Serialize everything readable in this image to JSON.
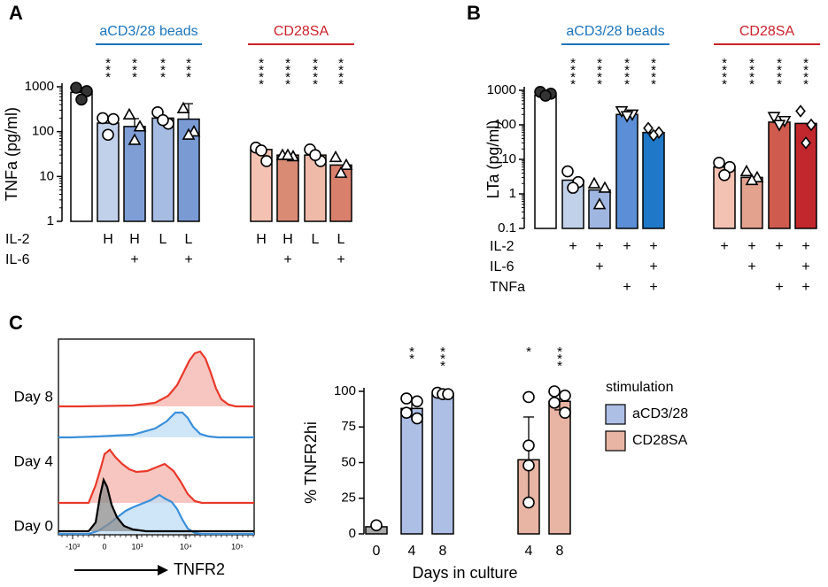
{
  "chart_data": [
    {
      "panel": "A",
      "type": "bar",
      "ylabel": "TNFa (pg/ml)",
      "yscale": "log",
      "ylim": [
        1,
        1000
      ],
      "yticks": [
        "1",
        "10",
        "100",
        "1000"
      ],
      "groups": [
        {
          "label": "aCD3/28 beads",
          "color": "#1c75bc"
        },
        {
          "label": "CD28SA",
          "color": "#c8222c"
        }
      ],
      "rows": [
        {
          "label": "IL-2",
          "values": [
            "",
            "H",
            "H",
            "L",
            "L",
            "H",
            "H",
            "L",
            "L"
          ]
        },
        {
          "label": "IL-6",
          "values": [
            "",
            "",
            "+",
            "",
            "+",
            "",
            "+",
            "",
            "+"
          ]
        }
      ],
      "bars": [
        {
          "value": 750,
          "err": 0,
          "fill": "#ffffff",
          "marker": "circle-filled",
          "points": [
            950,
            800,
            520
          ],
          "sig": ""
        },
        {
          "value": 155,
          "err": 0,
          "fill": "#c2d1ea",
          "marker": "circle",
          "points": [
            200,
            190,
            85
          ],
          "sig": "***"
        },
        {
          "value": 130,
          "err": 65,
          "fill": "#7f9ed6",
          "marker": "triangle",
          "points": [
            240,
            130,
            65
          ],
          "sig": "***"
        },
        {
          "value": 200,
          "err": 0,
          "fill": "#a6bce3",
          "marker": "circle",
          "points": [
            270,
            150,
            180
          ],
          "sig": "***"
        },
        {
          "value": 190,
          "err": 230,
          "fill": "#7a9ad4",
          "marker": "triangle",
          "points": [
            330,
            100,
            85
          ],
          "sig": "***"
        },
        {
          "value": 40,
          "err": 0,
          "fill": "#f3c2b2",
          "marker": "circle",
          "points": [
            44,
            22,
            38
          ],
          "sig": "****"
        },
        {
          "value": 30,
          "err": 0,
          "fill": "#d98b74",
          "marker": "triangle",
          "points": [
            30,
            28,
            30
          ],
          "sig": "****"
        },
        {
          "value": 30,
          "err": 0,
          "fill": "#f0baa8",
          "marker": "circle",
          "points": [
            40,
            22,
            30
          ],
          "sig": "****"
        },
        {
          "value": 18,
          "err": 0,
          "fill": "#d9806c",
          "marker": "triangle",
          "points": [
            27,
            18,
            12
          ],
          "sig": "****"
        }
      ]
    },
    {
      "panel": "B",
      "type": "bar",
      "ylabel": "LTa (pg/ml)",
      "yscale": "log",
      "ylim": [
        0.1,
        1000
      ],
      "yticks": [
        "0.1",
        "1",
        "10",
        "100",
        "1000"
      ],
      "groups": [
        {
          "label": "aCD3/28 beads",
          "color": "#1c75bc"
        },
        {
          "label": "CD28SA",
          "color": "#c8222c"
        }
      ],
      "rows": [
        {
          "label": "IL-2",
          "values": [
            "",
            "+",
            "+",
            "+",
            "+",
            "+",
            "+",
            "+",
            "+"
          ]
        },
        {
          "label": "IL-6",
          "values": [
            "",
            "",
            "+",
            "",
            "+",
            "",
            "+",
            "",
            "+"
          ]
        },
        {
          "label": "TNFa",
          "values": [
            "",
            "",
            "",
            "+",
            "+",
            "",
            "",
            "+",
            "+"
          ]
        }
      ],
      "bars": [
        {
          "value": 720,
          "err": 0,
          "fill": "#ffffff",
          "marker": "circle-filled",
          "points": [
            900,
            800,
            700
          ],
          "sig": ""
        },
        {
          "value": 2.5,
          "err": 0,
          "fill": "#c2d1ea",
          "marker": "circle",
          "points": [
            4.5,
            2.2,
            1.5
          ],
          "sig": "****"
        },
        {
          "value": 1.3,
          "err": 0,
          "fill": "#9fb6e0",
          "marker": "triangle",
          "points": [
            2,
            1.5,
            0.5
          ],
          "sig": "****"
        },
        {
          "value": 200,
          "err": 0,
          "fill": "#5b8ed6",
          "marker": "tri-down",
          "points": [
            250,
            200,
            180
          ],
          "sig": "****"
        },
        {
          "value": 60,
          "err": 0,
          "fill": "#1f78c8",
          "marker": "diamond",
          "points": [
            80,
            60,
            50
          ],
          "sig": "****"
        },
        {
          "value": 6,
          "err": 0,
          "fill": "#f3c2b2",
          "marker": "circle",
          "points": [
            8,
            6,
            3.5
          ],
          "sig": "****"
        },
        {
          "value": 3,
          "err": 0,
          "fill": "#e2a28e",
          "marker": "triangle",
          "points": [
            4.5,
            3,
            2.5
          ],
          "sig": "****"
        },
        {
          "value": 120,
          "err": 0,
          "fill": "#cf5a4e",
          "marker": "tri-down",
          "points": [
            170,
            130,
            100
          ],
          "sig": "****"
        },
        {
          "value": 110,
          "err": 0,
          "fill": "#c1272d",
          "marker": "diamond",
          "points": [
            250,
            100,
            30
          ],
          "sig": "****"
        }
      ]
    },
    {
      "panel": "C",
      "type": "histogram",
      "xlabel": "TNFR2",
      "xticks": [
        "-10³",
        "0",
        "10³",
        "10⁴",
        "10⁵"
      ],
      "rows": [
        {
          "label": "Day 8",
          "series": [
            {
              "color": "#e8392b",
              "fill": "#f6b3ab"
            },
            {
              "color": "#3b8fd9",
              "fill": "#bfdcf5"
            }
          ]
        },
        {
          "label": "Day 4",
          "series": [
            {
              "color": "#e8392b",
              "fill": "#f6b3ab"
            },
            {
              "color": "#3b8fd9",
              "fill": "#bfdcf5"
            }
          ]
        },
        {
          "label": "Day 0",
          "series": [
            {
              "color": "#000000",
              "fill": "#8c8c8c"
            }
          ]
        }
      ]
    },
    {
      "panel": "C",
      "type": "bar",
      "ylabel": "% TNFR2hi",
      "xlabel": "Days in culture",
      "ylim": [
        0,
        100
      ],
      "yticks": [
        "0",
        "25",
        "50",
        "75",
        "100"
      ],
      "legend_title": "stimulation",
      "legend": [
        {
          "label": "aCD3/28",
          "fill": "#aebfe6"
        },
        {
          "label": "CD28SA",
          "fill": "#e8b4a3"
        }
      ],
      "bars": [
        {
          "label": "0",
          "value": 5,
          "err": 0,
          "fill": "#a9a9a9",
          "points": [
            6
          ],
          "sig": ""
        },
        {
          "label": "4",
          "value": 88,
          "err": 6,
          "fill": "#aebfe6",
          "points": [
            95,
            93,
            85,
            81
          ],
          "sig": "**"
        },
        {
          "label": "8",
          "value": 98,
          "err": 0,
          "fill": "#aebfe6",
          "points": [
            99,
            98,
            98
          ],
          "sig": "***"
        },
        {
          "label": "4",
          "value": 52,
          "err": 30,
          "fill": "#e8b4a3",
          "points": [
            96,
            62,
            48,
            22
          ],
          "sig": "*"
        },
        {
          "label": "8",
          "value": 93,
          "err": 6,
          "fill": "#e8b4a3",
          "points": [
            100,
            97,
            92,
            85
          ],
          "sig": "***"
        }
      ]
    }
  ],
  "panel_labels": [
    "A",
    "B",
    "C"
  ]
}
